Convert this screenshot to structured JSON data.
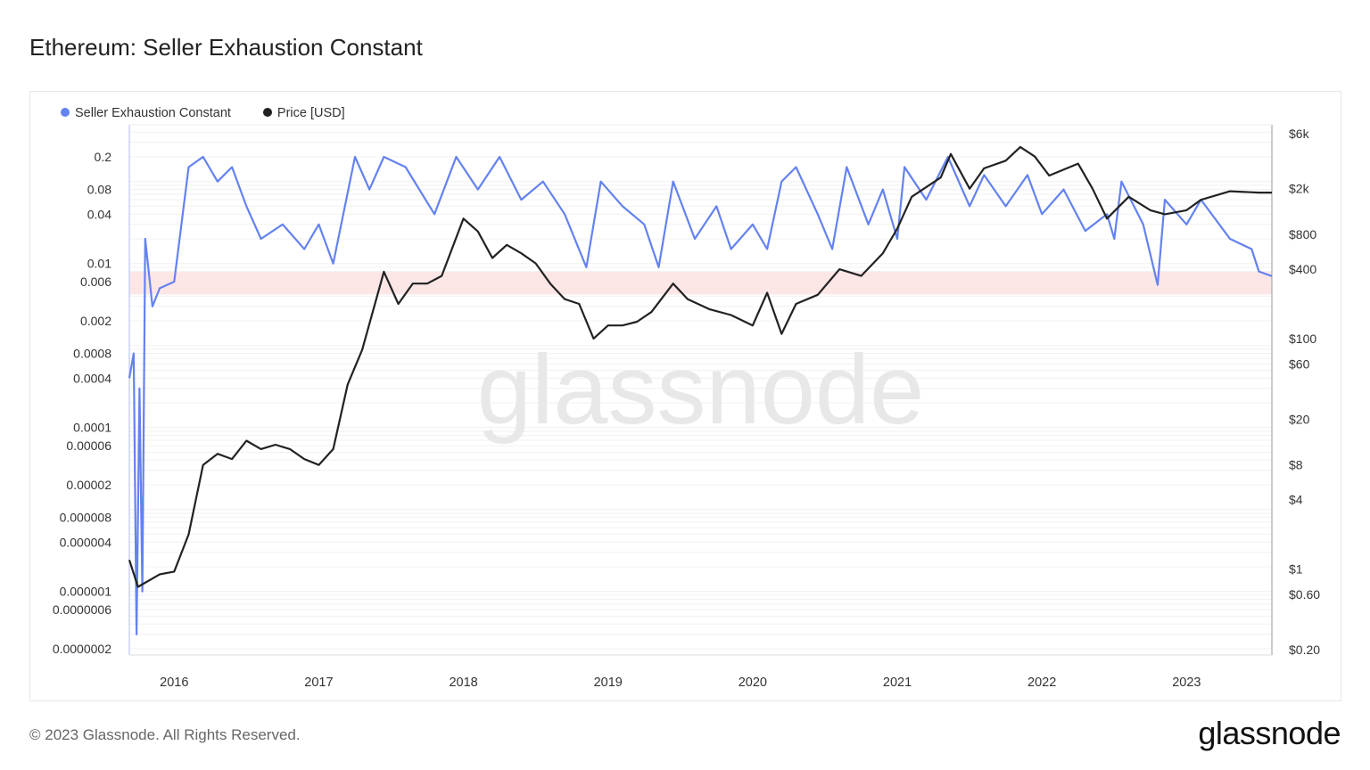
{
  "title": "Ethereum: Seller Exhaustion Constant",
  "footer": "© 2023 Glassnode. All Rights Reserved.",
  "logo": "glassnode",
  "watermark": "glassnode",
  "colors": {
    "sec": "#6482f0",
    "price": "#222222",
    "band": "#fde2e2"
  },
  "chart_data": {
    "type": "line",
    "title": "Ethereum: Seller Exhaustion Constant",
    "legend": [
      "Seller Exhaustion Constant",
      "Price [USD]"
    ],
    "legend_position": "top-left",
    "x_ticks": [
      "2016",
      "2017",
      "2018",
      "2019",
      "2020",
      "2021",
      "2022",
      "2023"
    ],
    "xlim": [
      2015.69,
      2023.59
    ],
    "y_left": {
      "scale": "log",
      "ticks": [
        "0.2",
        "0.08",
        "0.04",
        "0.01",
        "0.006",
        "0.002",
        "0.0008",
        "0.0004",
        "0.0001",
        "0.00006",
        "0.00002",
        "0.000008",
        "0.000004",
        "0.000001",
        "0.0000006",
        "0.0000002"
      ],
      "tick_values": [
        0.2,
        0.08,
        0.04,
        0.01,
        0.006,
        0.002,
        0.0008,
        0.0004,
        0.0001,
        6e-05,
        2e-05,
        8e-06,
        4e-06,
        1e-06,
        6e-07,
        2e-07
      ],
      "range": [
        2e-07,
        0.2
      ]
    },
    "y_right": {
      "scale": "log",
      "ticks": [
        "$6k",
        "$2k",
        "$800",
        "$400",
        "$100",
        "$60",
        "$20",
        "$8",
        "$4",
        "$1",
        "$0.60",
        "$0.20"
      ],
      "tick_values": [
        6000,
        2000,
        800,
        400,
        100,
        60,
        20,
        8,
        4,
        1,
        0.6,
        0.2
      ],
      "range": [
        0.2,
        6000
      ]
    },
    "band": {
      "low": 0.0042,
      "high": 0.0079
    },
    "series": [
      {
        "name": "Seller Exhaustion Constant",
        "axis": "left",
        "x": [
          2015.69,
          2015.72,
          2015.74,
          2015.76,
          2015.78,
          2015.8,
          2015.85,
          2015.9,
          2016.0,
          2016.1,
          2016.2,
          2016.3,
          2016.4,
          2016.5,
          2016.6,
          2016.75,
          2016.9,
          2017.0,
          2017.1,
          2017.25,
          2017.35,
          2017.45,
          2017.6,
          2017.8,
          2017.95,
          2018.1,
          2018.25,
          2018.4,
          2018.55,
          2018.7,
          2018.85,
          2018.95,
          2019.1,
          2019.25,
          2019.35,
          2019.45,
          2019.6,
          2019.75,
          2019.85,
          2020.0,
          2020.1,
          2020.2,
          2020.3,
          2020.45,
          2020.55,
          2020.65,
          2020.8,
          2020.9,
          2021.0,
          2021.05,
          2021.2,
          2021.35,
          2021.5,
          2021.6,
          2021.75,
          2021.9,
          2022.0,
          2022.15,
          2022.3,
          2022.45,
          2022.5,
          2022.55,
          2022.7,
          2022.8,
          2022.85,
          2023.0,
          2023.1,
          2023.3,
          2023.45,
          2023.5,
          2023.59
        ],
        "values": [
          0.0004,
          0.0008,
          3e-07,
          0.0003,
          1e-06,
          0.02,
          0.003,
          0.005,
          0.006,
          0.15,
          0.2,
          0.1,
          0.15,
          0.05,
          0.02,
          0.03,
          0.015,
          0.03,
          0.01,
          0.2,
          0.08,
          0.2,
          0.15,
          0.04,
          0.2,
          0.08,
          0.2,
          0.06,
          0.1,
          0.04,
          0.009,
          0.1,
          0.05,
          0.03,
          0.009,
          0.1,
          0.02,
          0.05,
          0.015,
          0.03,
          0.015,
          0.1,
          0.15,
          0.04,
          0.015,
          0.15,
          0.03,
          0.08,
          0.02,
          0.15,
          0.06,
          0.2,
          0.05,
          0.12,
          0.05,
          0.12,
          0.04,
          0.08,
          0.025,
          0.04,
          0.02,
          0.1,
          0.03,
          0.0055,
          0.06,
          0.03,
          0.06,
          0.02,
          0.015,
          0.008,
          0.007
        ]
      },
      {
        "name": "Price [USD]",
        "axis": "right",
        "x": [
          2015.69,
          2015.75,
          2015.9,
          2016.0,
          2016.1,
          2016.2,
          2016.3,
          2016.4,
          2016.5,
          2016.6,
          2016.7,
          2016.8,
          2016.9,
          2017.0,
          2017.1,
          2017.2,
          2017.3,
          2017.45,
          2017.55,
          2017.65,
          2017.75,
          2017.85,
          2018.0,
          2018.1,
          2018.2,
          2018.3,
          2018.4,
          2018.5,
          2018.6,
          2018.7,
          2018.8,
          2018.9,
          2019.0,
          2019.1,
          2019.2,
          2019.3,
          2019.45,
          2019.55,
          2019.7,
          2019.85,
          2020.0,
          2020.1,
          2020.2,
          2020.3,
          2020.45,
          2020.6,
          2020.75,
          2020.9,
          2021.0,
          2021.1,
          2021.3,
          2021.37,
          2021.5,
          2021.6,
          2021.75,
          2021.85,
          2021.95,
          2022.05,
          2022.25,
          2022.35,
          2022.45,
          2022.6,
          2022.75,
          2022.85,
          2023.0,
          2023.1,
          2023.3,
          2023.5,
          2023.59
        ],
        "values": [
          1.2,
          0.7,
          0.9,
          0.95,
          2,
          8,
          10,
          9,
          13,
          11,
          12,
          11,
          9,
          8,
          11,
          40,
          80,
          380,
          200,
          300,
          300,
          350,
          1100,
          850,
          500,
          650,
          550,
          450,
          300,
          220,
          200,
          100,
          130,
          130,
          140,
          170,
          300,
          220,
          180,
          160,
          130,
          250,
          110,
          200,
          240,
          400,
          350,
          550,
          900,
          1700,
          2500,
          4000,
          2000,
          3000,
          3500,
          4600,
          3800,
          2600,
          3300,
          2000,
          1100,
          1700,
          1300,
          1200,
          1300,
          1600,
          1900,
          1850,
          1850
        ]
      }
    ]
  }
}
